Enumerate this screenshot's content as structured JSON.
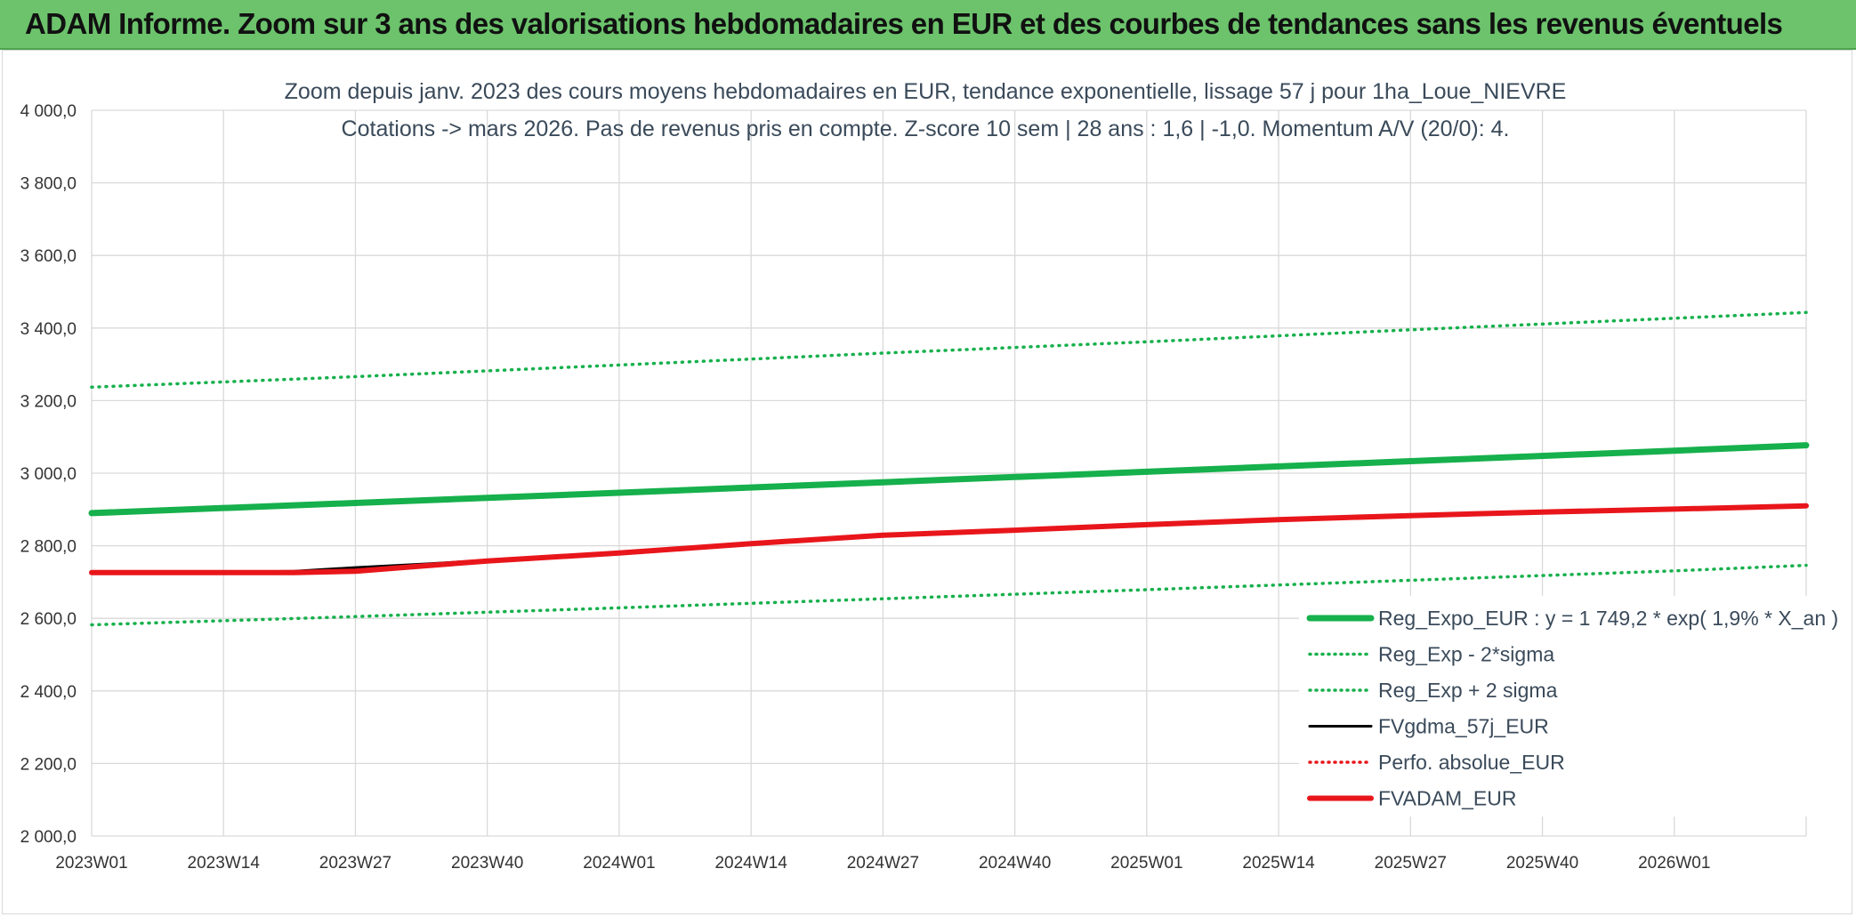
{
  "header": {
    "title": "ADAM Informe. Zoom sur 3 ans des valorisations hebdomadaires en EUR et des courbes de tendances sans les revenus éventuels"
  },
  "colors": {
    "header_bg": "#6cc36c",
    "trend_green": "#16b04c",
    "adam_red": "#e8161b",
    "gdma_black": "#000000",
    "grid": "#d9d9d9",
    "text": "#3a4a5a"
  },
  "chart_data": {
    "type": "line",
    "title": "Zoom depuis janv. 2023 des cours moyens hebdomadaires en EUR, tendance exponentielle, lissage 57 j pour 1ha_Loue_NIEVRE",
    "subtitle": "Cotations -> mars 2026. Pas de revenus pris en compte. Z-score 10 sem | 28 ans : 1,6 | -1,0. Momentum A/V (20/0): 4.",
    "ylim": [
      2000,
      4000
    ],
    "yticks": [
      {
        "v": 2000,
        "label": "2 000,0"
      },
      {
        "v": 2200,
        "label": "2 200,0"
      },
      {
        "v": 2400,
        "label": "2 400,0"
      },
      {
        "v": 2600,
        "label": "2 600,0"
      },
      {
        "v": 2800,
        "label": "2 800,0"
      },
      {
        "v": 3000,
        "label": "3 000,0"
      },
      {
        "v": 3200,
        "label": "3 200,0"
      },
      {
        "v": 3400,
        "label": "3 400,0"
      },
      {
        "v": 3600,
        "label": "3 600,0"
      },
      {
        "v": 3800,
        "label": "3 800,0"
      },
      {
        "v": 4000,
        "label": "4 000,0"
      }
    ],
    "xlim": [
      0,
      169
    ],
    "xticks": [
      {
        "v": 0,
        "label": "2023W01"
      },
      {
        "v": 13,
        "label": "2023W14"
      },
      {
        "v": 26,
        "label": "2023W27"
      },
      {
        "v": 39,
        "label": "2023W40"
      },
      {
        "v": 52,
        "label": "2024W01"
      },
      {
        "v": 65,
        "label": "2024W14"
      },
      {
        "v": 78,
        "label": "2024W27"
      },
      {
        "v": 91,
        "label": "2024W40"
      },
      {
        "v": 104,
        "label": "2025W01"
      },
      {
        "v": 117,
        "label": "2025W14"
      },
      {
        "v": 130,
        "label": "2025W27"
      },
      {
        "v": 143,
        "label": "2025W40"
      },
      {
        "v": 156,
        "label": "2026W01"
      }
    ],
    "grid": true,
    "legend_position": "right",
    "series": [
      {
        "name": "Reg_Expo_EUR : y = 1 749,2 * exp( 1,9% *  X_an )",
        "color": "#16b04c",
        "style": "solid",
        "width": 7,
        "points": [
          [
            0,
            2890
          ],
          [
            26,
            2918
          ],
          [
            52,
            2946
          ],
          [
            78,
            2975
          ],
          [
            104,
            3004
          ],
          [
            130,
            3033
          ],
          [
            156,
            3062
          ],
          [
            169,
            3077
          ]
        ]
      },
      {
        "name": "Reg_Exp - 2*sigma",
        "color": "#16b04c",
        "style": "dotted",
        "width": 3.5,
        "points": [
          [
            0,
            2582
          ],
          [
            26,
            2605
          ],
          [
            52,
            2629
          ],
          [
            78,
            2654
          ],
          [
            104,
            2679
          ],
          [
            130,
            2705
          ],
          [
            156,
            2731
          ],
          [
            169,
            2746
          ]
        ]
      },
      {
        "name": "Reg_Exp + 2 sigma",
        "color": "#16b04c",
        "style": "dotted",
        "width": 3.5,
        "points": [
          [
            0,
            3237
          ],
          [
            26,
            3266
          ],
          [
            52,
            3298
          ],
          [
            78,
            3331
          ],
          [
            104,
            3362
          ],
          [
            130,
            3395
          ],
          [
            156,
            3427
          ],
          [
            169,
            3443
          ]
        ]
      },
      {
        "name": "FVgdma_57j_EUR",
        "color": "#000000",
        "style": "solid",
        "width": 3,
        "points": [
          [
            0,
            2726
          ],
          [
            10,
            2726
          ],
          [
            20,
            2730
          ],
          [
            26,
            2740
          ],
          [
            33,
            2750
          ],
          [
            39,
            2760
          ],
          [
            52,
            2782
          ],
          [
            65,
            2805
          ],
          [
            78,
            2828
          ],
          [
            91,
            2843
          ],
          [
            104,
            2858
          ],
          [
            117,
            2872
          ],
          [
            130,
            2883
          ],
          [
            143,
            2893
          ],
          [
            156,
            2901
          ],
          [
            169,
            2910
          ]
        ]
      },
      {
        "name": "Perfo. absolue_EUR",
        "color": "#e8161b",
        "style": "dotted",
        "width": 3,
        "points": []
      },
      {
        "name": "FVADAM_EUR",
        "color": "#e8161b",
        "style": "solid",
        "width": 6,
        "points": [
          [
            0,
            2726
          ],
          [
            12,
            2726
          ],
          [
            20,
            2726
          ],
          [
            26,
            2730
          ],
          [
            33,
            2745
          ],
          [
            39,
            2758
          ],
          [
            52,
            2780
          ],
          [
            65,
            2806
          ],
          [
            78,
            2829
          ],
          [
            91,
            2843
          ],
          [
            104,
            2858
          ],
          [
            117,
            2872
          ],
          [
            130,
            2883
          ],
          [
            143,
            2893
          ],
          [
            156,
            2901
          ],
          [
            169,
            2910
          ]
        ]
      }
    ]
  }
}
